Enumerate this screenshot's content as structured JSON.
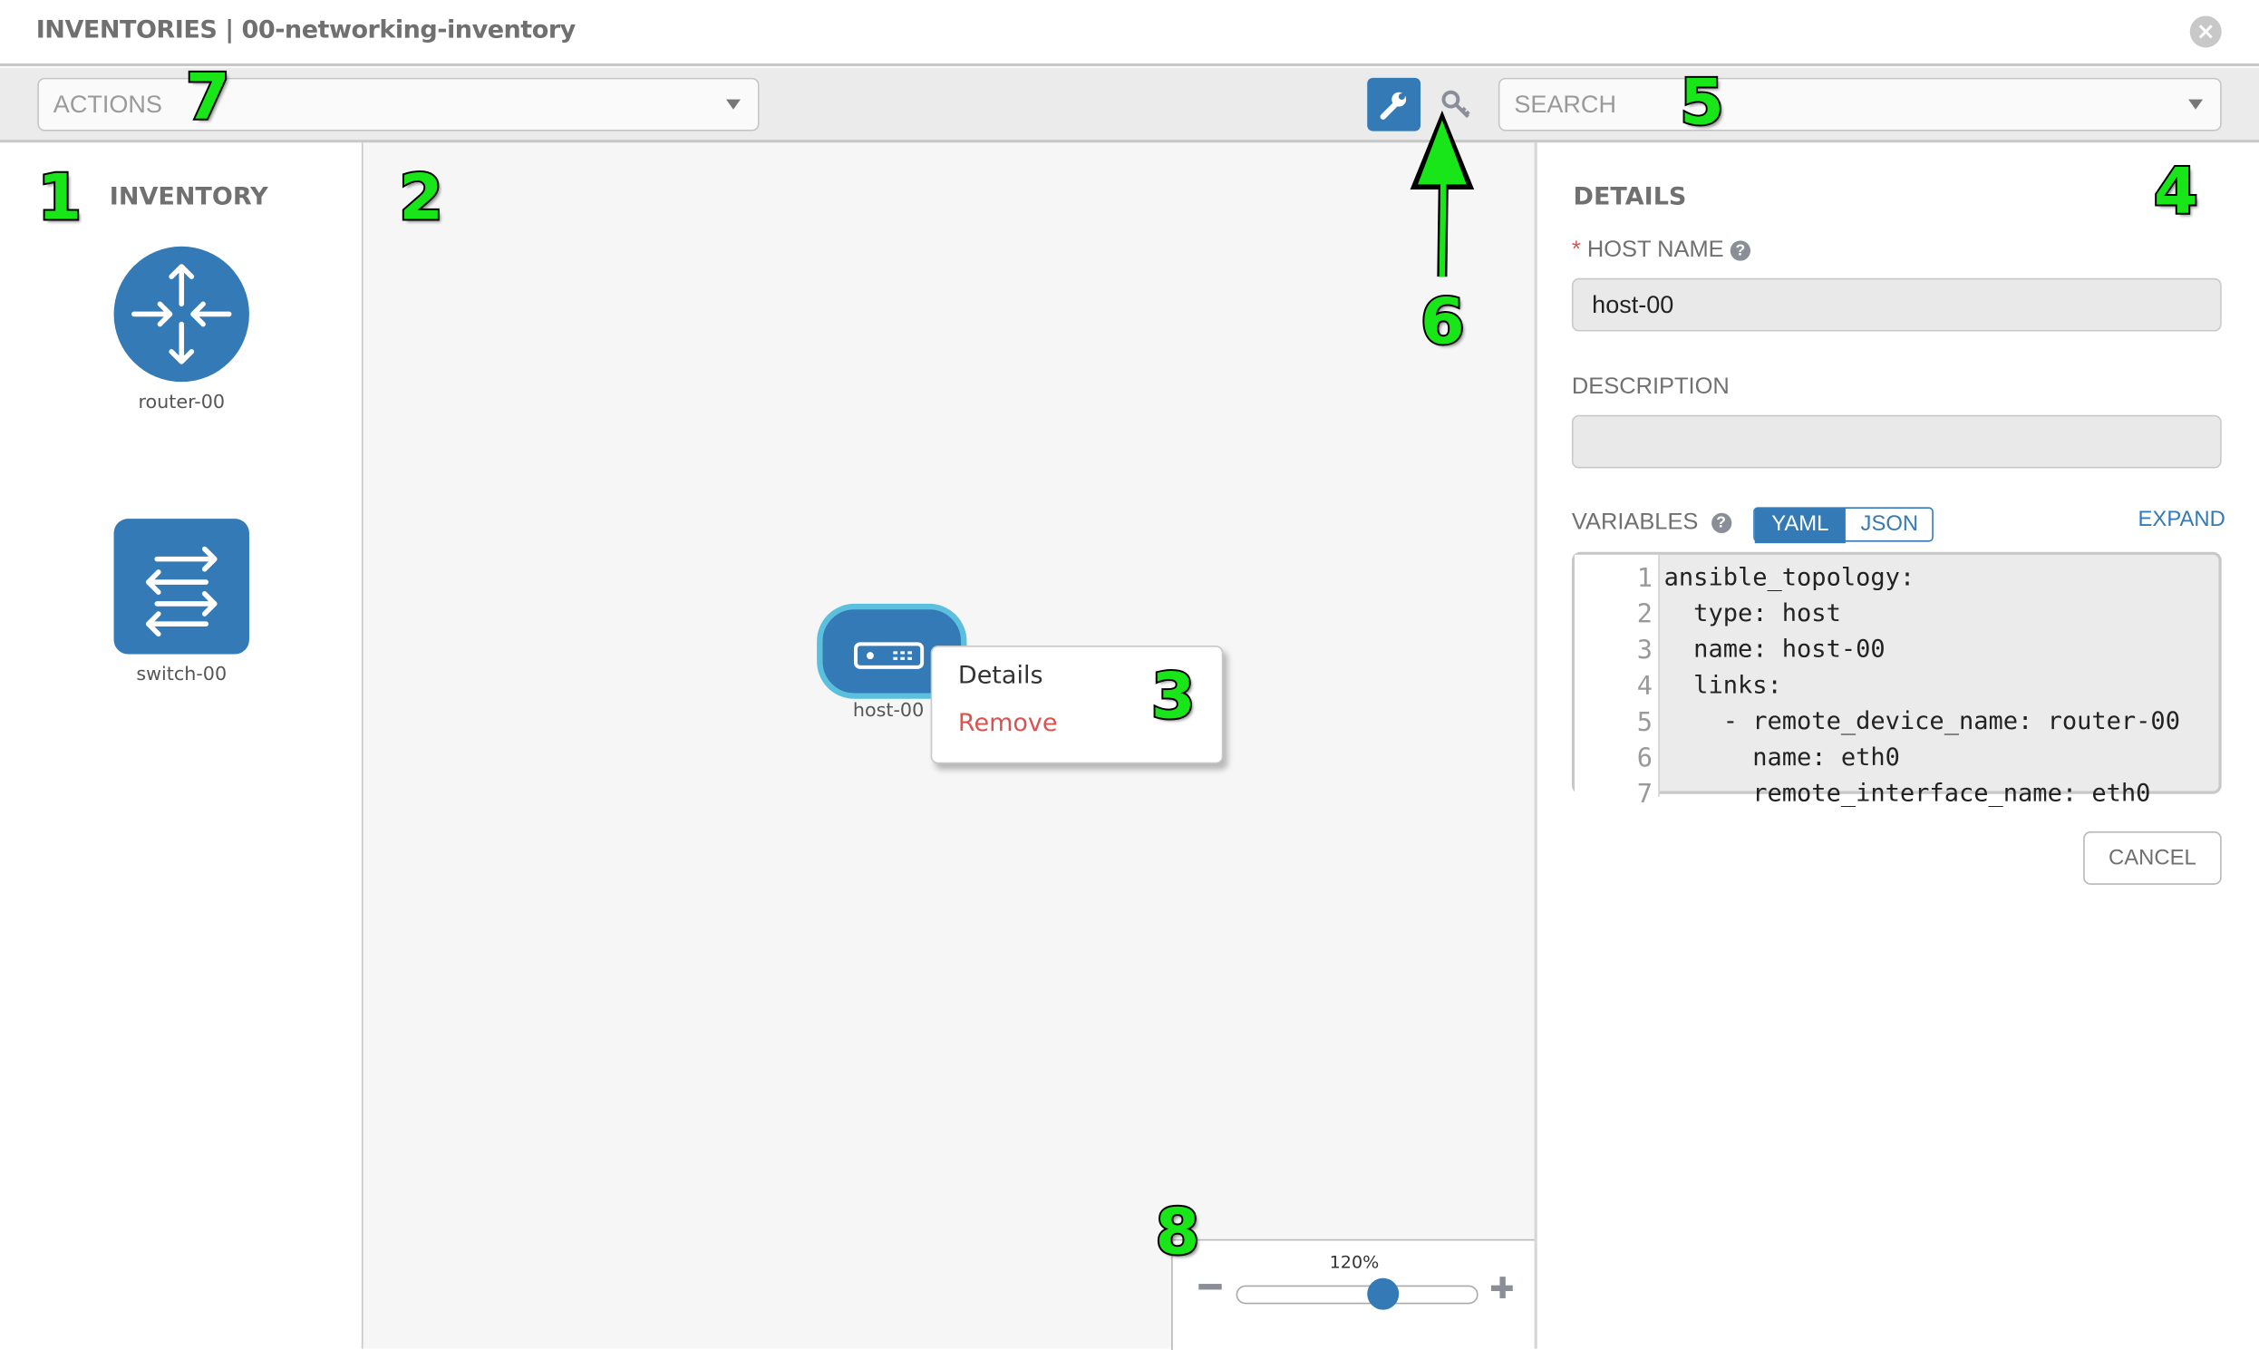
{
  "header": {
    "title": "INVENTORIES | 00-networking-inventory",
    "close_icon": "close-circle-icon"
  },
  "toolbar": {
    "actions_label": "ACTIONS",
    "search_placeholder": "SEARCH",
    "wrench_icon": "wrench-icon",
    "key_icon": "key-icon"
  },
  "inventory": {
    "title": "INVENTORY",
    "items": [
      {
        "label": "router-00",
        "icon": "router-icon"
      },
      {
        "label": "switch-00",
        "icon": "switch-icon"
      }
    ]
  },
  "canvas": {
    "node": {
      "label": "host-00",
      "icon": "host-server-icon"
    },
    "context_menu": {
      "details": "Details",
      "remove": "Remove"
    }
  },
  "details": {
    "title": "DETAILS",
    "required_mark": "*",
    "host_name_label": "HOST NAME",
    "host_name_value": "host-00",
    "description_label": "DESCRIPTION",
    "description_value": "",
    "variables_label": "VARIABLES",
    "yaml_label": "YAML",
    "json_label": "JSON",
    "expand_label": "EXPAND",
    "code_lines": [
      {
        "n": "1",
        "text": "ansible_topology:"
      },
      {
        "n": "2",
        "text": "  type: host"
      },
      {
        "n": "3",
        "text": "  name: host-00"
      },
      {
        "n": "4",
        "text": "  links:"
      },
      {
        "n": "5",
        "text": "    - remote_device_name: router-00"
      },
      {
        "n": "6",
        "text": "      name: eth0"
      },
      {
        "n": "7",
        "text": "      remote_interface_name: eth0"
      }
    ],
    "cancel_label": "CANCEL"
  },
  "zoom": {
    "label": "120%",
    "percent": 120,
    "slider_fraction": 0.6,
    "minus": "−",
    "plus": "+"
  },
  "annotations": [
    "1",
    "2",
    "3",
    "4",
    "5",
    "6",
    "7",
    "8"
  ],
  "colors": {
    "accent": "#337ab7",
    "node_border": "#5bc0de",
    "remove": "#d9534f",
    "annotation": "#19e619"
  }
}
